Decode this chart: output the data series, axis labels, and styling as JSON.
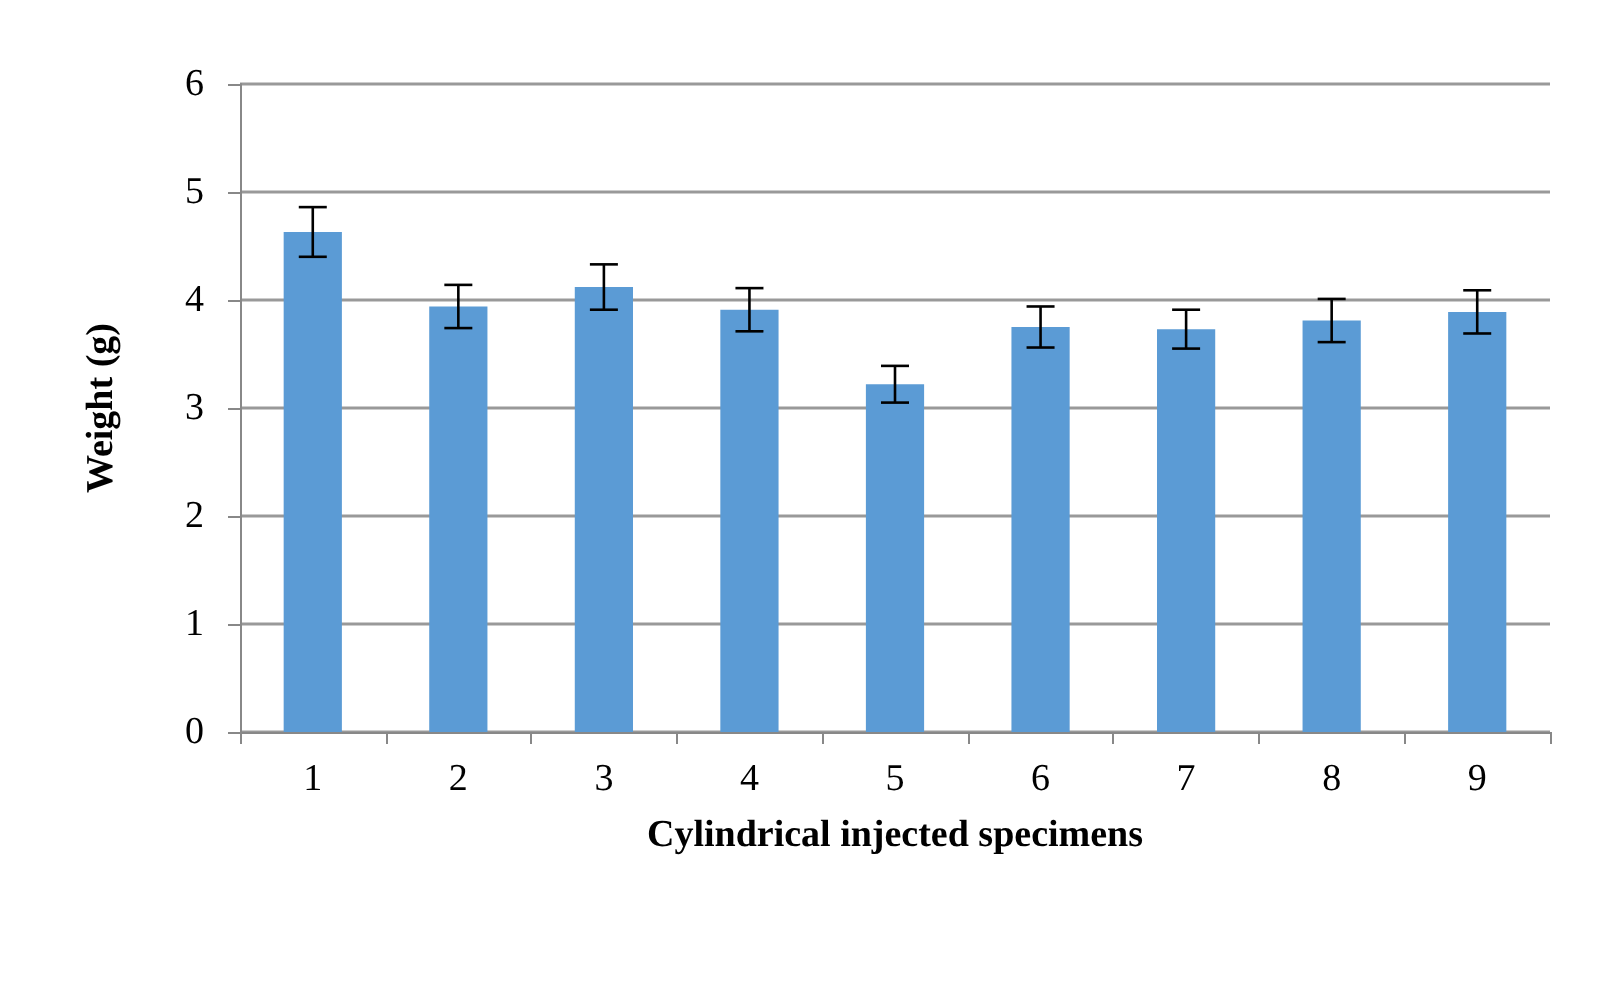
{
  "chart_data": {
    "type": "bar",
    "xlabel": "Cylindrical injected specimens",
    "ylabel": "Weight (g)",
    "categories": [
      "1",
      "2",
      "3",
      "4",
      "5",
      "6",
      "7",
      "8",
      "9"
    ],
    "values": [
      4.63,
      3.94,
      4.12,
      3.91,
      3.22,
      3.75,
      3.73,
      3.81,
      3.89
    ],
    "errors": [
      0.23,
      0.2,
      0.21,
      0.2,
      0.17,
      0.19,
      0.18,
      0.2,
      0.2
    ],
    "color": "#5b9bd5",
    "ylim": [
      0,
      6
    ],
    "yticks": [
      0,
      1,
      2,
      3,
      4,
      5,
      6
    ],
    "grid": "y"
  }
}
